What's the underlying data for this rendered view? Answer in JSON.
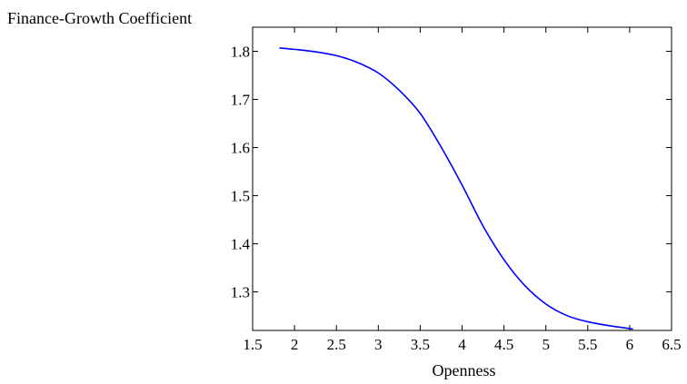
{
  "chart_data": {
    "type": "line",
    "title": "",
    "xlabel": "Openness",
    "ylabel": "Finance-Growth Coefficient",
    "xlim": [
      1.5,
      6.5
    ],
    "ylim": [
      1.22,
      1.85
    ],
    "x_ticks": [
      "1.5",
      "2",
      "2.5",
      "3",
      "3.5",
      "4",
      "4.5",
      "5",
      "5.5",
      "6",
      "6.5"
    ],
    "y_ticks": [
      "1.3",
      "1.4",
      "1.5",
      "1.6",
      "1.7",
      "1.8"
    ],
    "grid": false,
    "legend": "none",
    "series": [
      {
        "color": "#0000ff",
        "x": [
          1.82,
          2.0,
          2.25,
          2.5,
          2.75,
          3.0,
          3.25,
          3.5,
          3.75,
          4.0,
          4.25,
          4.5,
          4.75,
          5.0,
          5.25,
          5.5,
          5.75,
          6.04
        ],
        "y": [
          1.807,
          1.804,
          1.799,
          1.791,
          1.777,
          1.755,
          1.719,
          1.671,
          1.601,
          1.522,
          1.437,
          1.367,
          1.313,
          1.275,
          1.251,
          1.238,
          1.23,
          1.223
        ]
      }
    ]
  }
}
